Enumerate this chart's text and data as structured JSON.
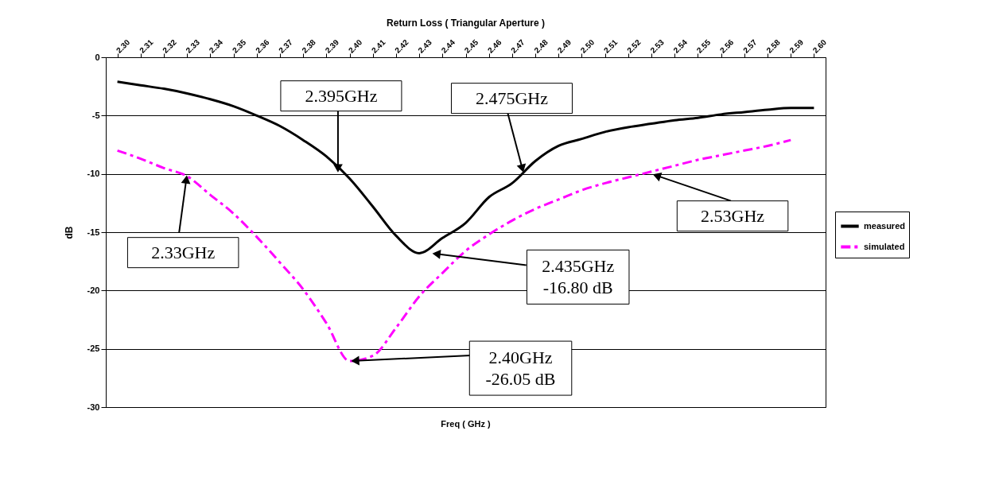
{
  "chart_data": {
    "type": "line",
    "title": "Return Loss ( Triangular Aperture )",
    "xlabel": "Freq ( GHz )",
    "ylabel": "dB",
    "x": [
      2.3,
      2.31,
      2.32,
      2.33,
      2.34,
      2.35,
      2.36,
      2.37,
      2.38,
      2.39,
      2.4,
      2.41,
      2.42,
      2.43,
      2.44,
      2.45,
      2.46,
      2.47,
      2.48,
      2.49,
      2.5,
      2.51,
      2.52,
      2.53,
      2.54,
      2.55,
      2.56,
      2.57,
      2.58,
      2.59,
      2.6
    ],
    "series": [
      {
        "name": "measured",
        "color": "#000000",
        "line_style": "solid",
        "values": [
          -2.1,
          -2.4,
          -2.7,
          -3.1,
          -3.6,
          -4.2,
          -5.0,
          -5.9,
          -7.1,
          -8.5,
          -10.4,
          -12.8,
          -15.3,
          -16.8,
          -15.5,
          -14.2,
          -12.0,
          -10.8,
          -8.9,
          -7.6,
          -7.0,
          -6.4,
          -6.0,
          -5.7,
          -5.4,
          -5.2,
          -4.9,
          -4.7,
          -4.5,
          -4.35,
          -4.35
        ]
      },
      {
        "name": "simulated",
        "color": "#ff00ff",
        "line_style": "dashed",
        "values": [
          -8.0,
          -8.7,
          -9.5,
          -10.2,
          -11.8,
          -13.4,
          -15.4,
          -17.6,
          -19.9,
          -22.8,
          -26.05,
          -25.6,
          -23.2,
          -20.5,
          -18.5,
          -16.6,
          -15.2,
          -14.0,
          -13.0,
          -12.2,
          -11.4,
          -10.8,
          -10.3,
          -9.8,
          -9.3,
          -8.8,
          -8.4,
          -8.0,
          -7.6,
          -7.1,
          null
        ]
      }
    ],
    "xlim": [
      2.295,
      2.605
    ],
    "xticks": [
      {
        "value": 2.3,
        "label": "2.30"
      },
      2.31,
      2.32,
      2.33,
      2.34,
      2.35,
      2.36,
      2.37,
      2.38,
      2.39,
      {
        "value": 2.4,
        "label": "2.40"
      },
      2.41,
      2.42,
      2.43,
      2.44,
      2.45,
      2.46,
      2.47,
      2.48,
      2.49,
      {
        "value": 2.5,
        "label": "2.50"
      },
      2.51,
      2.52,
      2.53,
      2.54,
      2.55,
      2.56,
      2.57,
      2.58,
      2.59,
      {
        "value": 2.6,
        "label": "2.60"
      }
    ],
    "ylim": [
      -30,
      0
    ],
    "yticks": [
      -30,
      -25,
      -20,
      -15,
      -10,
      -5,
      0
    ],
    "grid": "y",
    "legend": "right",
    "annotations": [
      {
        "text": "2.395GHz",
        "x": 2.395,
        "y": -10
      },
      {
        "text": "2.475GHz",
        "x": 2.475,
        "y": -10
      },
      {
        "text": "2.33GHz",
        "x": 2.33,
        "y": -10
      },
      {
        "text": "2.53GHz",
        "x": 2.53,
        "y": -10
      },
      {
        "text": "2.435GHz\n-16.80 dB",
        "x": 2.435,
        "y": -16.8
      },
      {
        "text": "2.40GHz\n-26.05 dB",
        "x": 2.4,
        "y": -26.05
      }
    ]
  }
}
